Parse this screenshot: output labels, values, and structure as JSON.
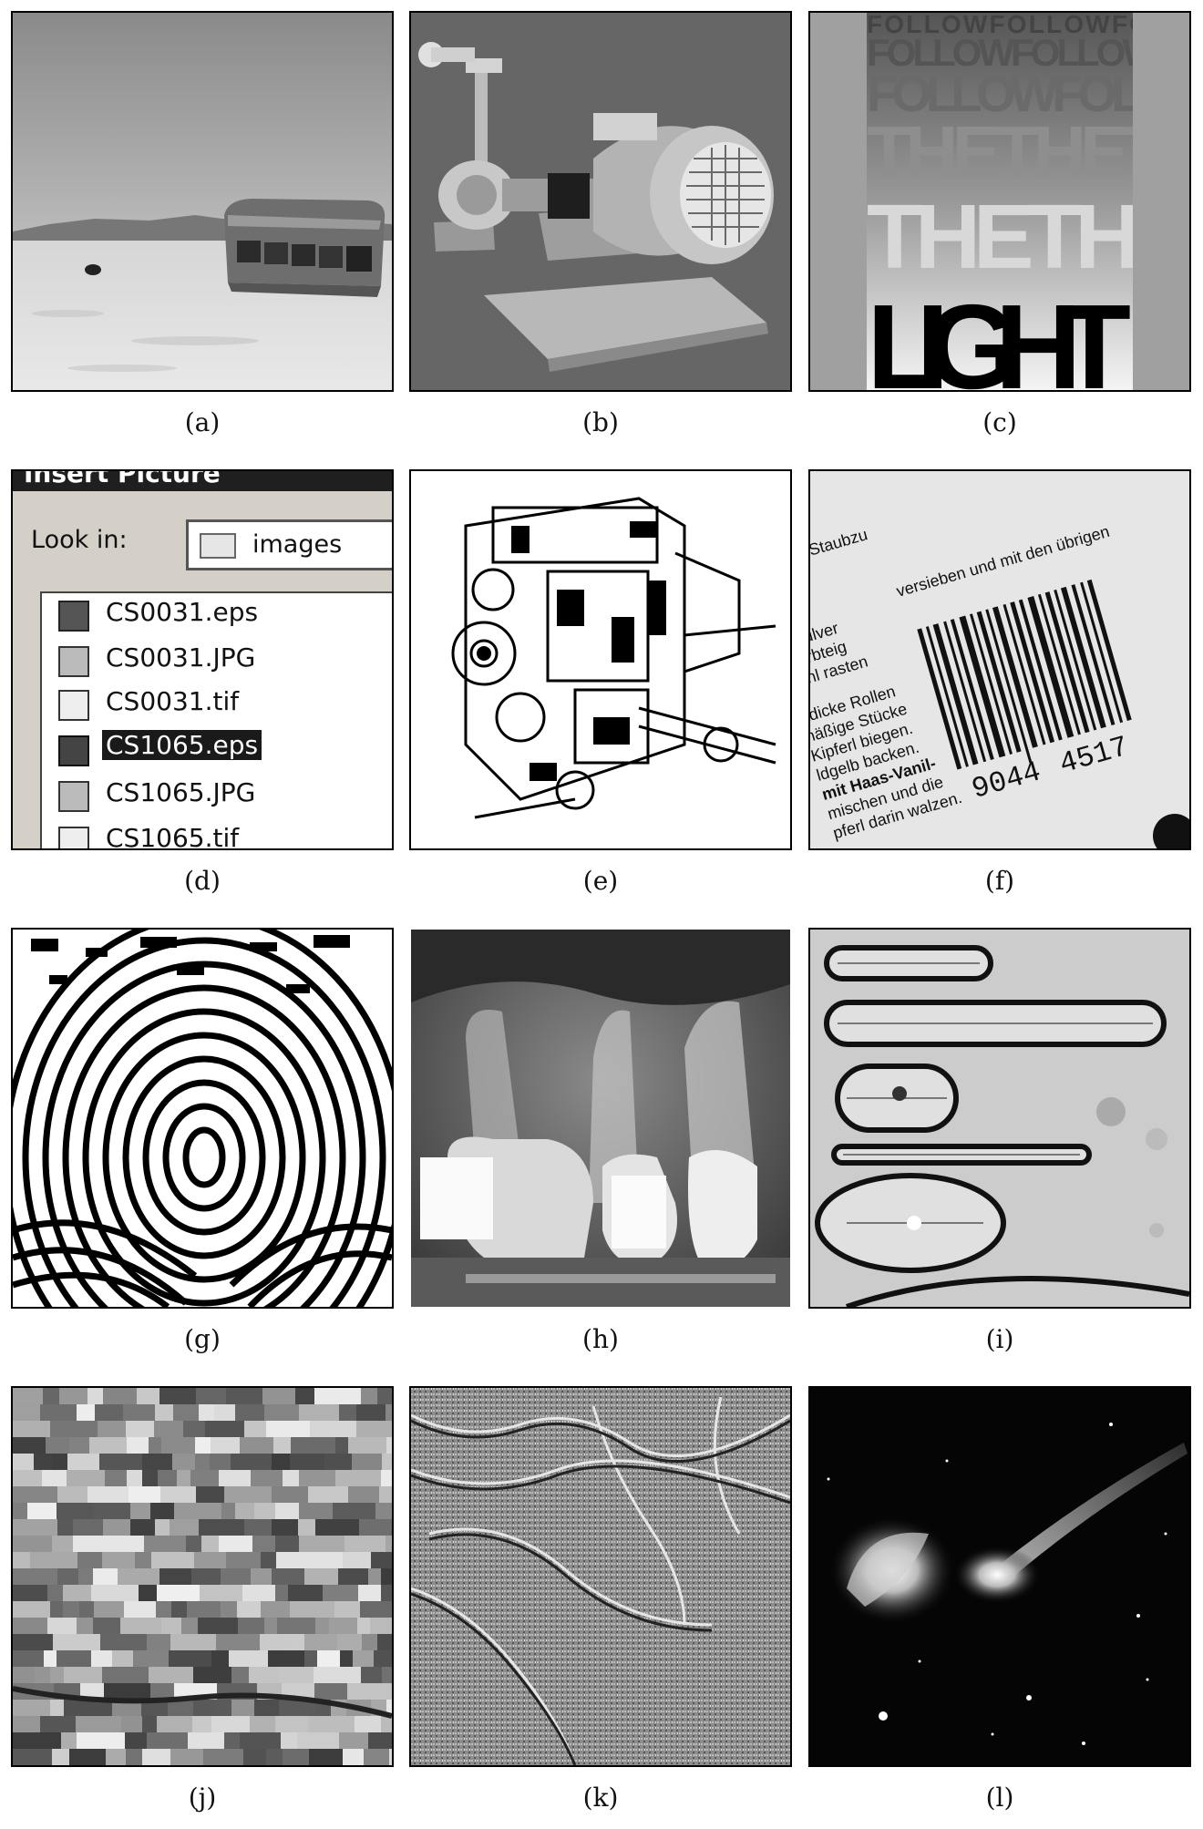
{
  "panels": [
    {
      "id": "a",
      "caption": "(a)",
      "subject": "abandoned bus in desert"
    },
    {
      "id": "b",
      "caption": "(b)",
      "subject": "3D rendered pump and motor"
    },
    {
      "id": "c",
      "caption": "(c)",
      "subject": "typographic poster"
    },
    {
      "id": "d",
      "caption": "(d)",
      "subject": "file dialog screenshot"
    },
    {
      "id": "e",
      "caption": "(e)",
      "subject": "line drawing of engine"
    },
    {
      "id": "f",
      "caption": "(f)",
      "subject": "barcode on packaging"
    },
    {
      "id": "g",
      "caption": "(g)",
      "subject": "fingerprint"
    },
    {
      "id": "h",
      "caption": "(h)",
      "subject": "dental x-ray"
    },
    {
      "id": "i",
      "caption": "(i)",
      "subject": "diatoms micrograph"
    },
    {
      "id": "j",
      "caption": "(j)",
      "subject": "aerial view of fields"
    },
    {
      "id": "k",
      "caption": "(k)",
      "subject": "radar terrain image"
    },
    {
      "id": "l",
      "caption": "(l)",
      "subject": "interacting galaxies"
    }
  ],
  "poster": {
    "row1": "FOLLOWFOLLOWFO",
    "row2": "FOLLOWFOLLOW",
    "row3": "FOLLOWFOLL",
    "row4": "THETHET",
    "row5": "THETHI",
    "row6": "LIGHT"
  },
  "dialog": {
    "title": "Insert Picture",
    "look_in_label": "Look in:",
    "folder": "images",
    "files": [
      "CS0031.eps",
      "CS0031.JPG",
      "CS0031.tif",
      "CS1065.eps",
      "CS1065.JPG",
      "CS1065.tif"
    ],
    "selected_index": 3
  },
  "barcode": {
    "number_left": "9044",
    "number_right": "4517",
    "text_top": "Staubzu",
    "text_line1": "versieben und mit den übrigen",
    "lines": [
      "ckpulver",
      "Mürbteig",
      "kühl rasten",
      "ftdicke Rollen",
      "näßige Stücke",
      "Kipferl biegen.",
      "ldgelb backen.",
      "mit Haas-Vanil-",
      "mischen und die",
      "pferl darin walzen."
    ]
  }
}
